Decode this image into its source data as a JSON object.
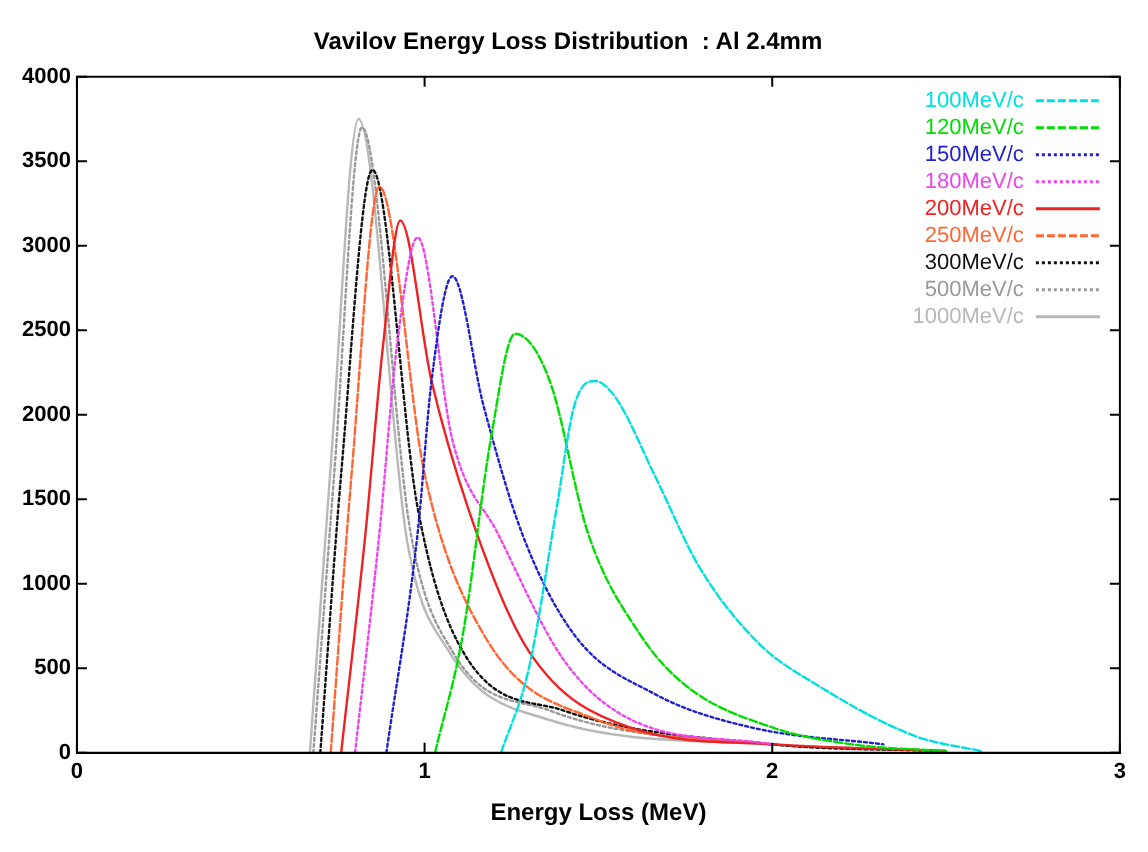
{
  "chart_data": {
    "type": "line",
    "title": "Vavilov Energy Loss Distribution  : Al 2.4mm",
    "xlabel": "Energy Loss (MeV)",
    "xlim": [
      0,
      3
    ],
    "xticks": [
      0,
      1,
      2,
      3
    ],
    "ylim": [
      0,
      4000
    ],
    "yticks": [
      0,
      500,
      1000,
      1500,
      2000,
      2500,
      3000,
      3500,
      4000
    ],
    "grid": false,
    "legend": "top right",
    "marker": "none",
    "series": [
      {
        "name": "100MeV/c",
        "color": "#00e0e0",
        "line_style": "dashed",
        "x": [
          1.22,
          1.3,
          1.38,
          1.43,
          1.49,
          1.55,
          1.66,
          1.79,
          1.96,
          2.13,
          2.41,
          2.6
        ],
        "values": [
          0,
          500,
          1450,
          2050,
          2200,
          2100,
          1650,
          1100,
          650,
          400,
          100,
          10
        ]
      },
      {
        "name": "120MeV/c",
        "color": "#00dd00",
        "line_style": "dashed",
        "x": [
          1.03,
          1.11,
          1.19,
          1.26,
          1.36,
          1.47,
          1.62,
          1.75,
          2.0,
          2.23,
          2.5
        ],
        "values": [
          0,
          700,
          1850,
          2480,
          2200,
          1300,
          700,
          400,
          150,
          50,
          10
        ]
      },
      {
        "name": "150MeV/c",
        "color": "#2020d0",
        "line_style": "dotted",
        "x": [
          0.89,
          0.98,
          1.02,
          1.08,
          1.17,
          1.28,
          1.43,
          1.66,
          1.94,
          2.32
        ],
        "values": [
          0,
          1300,
          2200,
          2820,
          2050,
          1300,
          700,
          350,
          150,
          50
        ]
      },
      {
        "name": "180MeV/c",
        "color": "#ee44ee",
        "line_style": "dotted",
        "x": [
          0.8,
          0.87,
          0.92,
          0.98,
          1.08,
          1.21,
          1.4,
          1.59,
          2.0
        ],
        "values": [
          0,
          1300,
          2400,
          3050,
          1850,
          1300,
          550,
          200,
          50
        ]
      },
      {
        "name": "200MeV/c",
        "color": "#ee2222",
        "line_style": "solid",
        "x": [
          0.76,
          0.83,
          0.88,
          0.93,
          1.02,
          1.15,
          1.3,
          1.59,
          2.0,
          2.5
        ],
        "values": [
          0,
          1300,
          2400,
          3150,
          2200,
          1300,
          600,
          150,
          50,
          10
        ]
      },
      {
        "name": "250MeV/c",
        "color": "#ff6633",
        "line_style": "dashed",
        "x": [
          0.73,
          0.79,
          0.87,
          1.0,
          1.17,
          1.49,
          2.0
        ],
        "values": [
          0,
          1650,
          3350,
          1650,
          700,
          200,
          50
        ]
      },
      {
        "name": "300MeV/c",
        "color": "#111111",
        "line_style": "dotted",
        "x": [
          0.7,
          0.76,
          0.85,
          0.98,
          1.11,
          1.4,
          2.0,
          2.5
        ],
        "values": [
          0,
          1650,
          3450,
          1450,
          600,
          250,
          50,
          10
        ]
      },
      {
        "name": "500MeV/c",
        "color": "#999999",
        "line_style": "dotted",
        "x": [
          0.68,
          0.74,
          0.82,
          0.96,
          1.08,
          1.36,
          2.0,
          2.5
        ],
        "values": [
          0,
          1650,
          3700,
          1300,
          600,
          250,
          50,
          10
        ]
      },
      {
        "name": "1000MeV/c",
        "color": "#b8b8b8",
        "line_style": "solid",
        "x": [
          0.67,
          0.73,
          0.81,
          0.95,
          1.07,
          1.35,
          2.0,
          2.5
        ],
        "values": [
          0,
          1700,
          3750,
          1250,
          600,
          200,
          50,
          10
        ]
      }
    ]
  }
}
